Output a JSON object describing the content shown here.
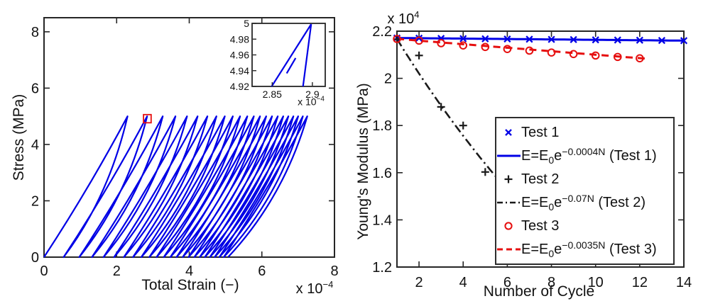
{
  "palette": {
    "blue": "#0000E6",
    "red": "#E60F0F",
    "black": "#1a1a1a",
    "axis": "#262626",
    "text": "#111111",
    "background": "#ffffff"
  },
  "left_plot": {
    "xlabel": "Total Strain (−)",
    "ylabel": "Stress (MPa)",
    "x_mult_base": "x 10",
    "x_mult_exp": "−4",
    "inset_mult_base": "x 10",
    "inset_mult_exp": "−4"
  },
  "right_plot": {
    "xlabel": "Number of Cycle",
    "ylabel": "Young's Modulus (MPa)",
    "y_mult_base": "x 10",
    "y_mult_exp": "4",
    "legend": {
      "rows": [
        {
          "label": "Test 1"
        },
        {
          "pre": "E=E",
          "sub": "0",
          "mid": "e",
          "sup": "−0.0004N",
          "post": " (Test 1)"
        },
        {
          "label": "Test 2"
        },
        {
          "pre": "E=E",
          "sub": "0",
          "mid": "e",
          "sup": "−0.07N",
          "post": " (Test 2)"
        },
        {
          "label": "Test 3"
        },
        {
          "pre": "E=E",
          "sub": "0",
          "mid": "e",
          "sup": "−0.0035N",
          "post": " (Test 3)"
        }
      ]
    }
  },
  "chart_data": [
    {
      "type": "line",
      "title": "",
      "xlabel": "Total Strain (−)",
      "ylabel": "Stress (MPa)",
      "x_unit_multiplier": "1e-4",
      "xlim": [
        0,
        8
      ],
      "ylim": [
        0,
        8.5
      ],
      "xticks": [
        0,
        2,
        4,
        6,
        8
      ],
      "xtick_labels": [
        "0",
        "2",
        "4",
        "6",
        "8"
      ],
      "yticks": [
        0,
        2,
        4,
        6,
        8
      ],
      "ytick_labels": [
        "0",
        "2",
        "4",
        "6",
        "8"
      ],
      "grid": false,
      "series_name": "cyclic loading-unloading stress-strain loops",
      "line_color": "#0000E6",
      "peak_stress_MPa": 5,
      "cycle_feet_strain_1e4": [
        0.0,
        0.54,
        0.97,
        1.32,
        1.64,
        1.93,
        2.2,
        2.45,
        2.68,
        2.9,
        3.1,
        3.3,
        3.48,
        3.65,
        3.82,
        3.98,
        4.14,
        4.29,
        4.43,
        4.57,
        4.7,
        4.83,
        4.95
      ],
      "cycle_peaks_strain_1e4": [
        2.3,
        2.84,
        3.27,
        3.62,
        3.94,
        4.23,
        4.5,
        4.75,
        4.98,
        5.2,
        5.4,
        5.6,
        5.78,
        5.95,
        6.12,
        6.28,
        6.44,
        6.59,
        6.73,
        6.87,
        7.0,
        7.13,
        7.25
      ],
      "final_residual_strain_1e4": 5.07,
      "zoom_marker_rect": {
        "x0": 2.74,
        "x1": 2.95,
        "y0": 4.77,
        "y1": 5.06,
        "color": "#E60F0F"
      },
      "inset": {
        "xlim": [
          2.825,
          2.916
        ],
        "ylim": [
          4.92,
          5.0
        ],
        "xticks": [
          2.85,
          2.9
        ],
        "xtick_labels": [
          "2.85",
          "2.9"
        ],
        "yticks": [
          5,
          4.98,
          4.96,
          4.94,
          4.92
        ],
        "ytick_labels": [
          "5",
          "4.98",
          "4.96",
          "4.94",
          "4.92"
        ],
        "x_unit_multiplier": "1e-4",
        "segments": [
          {
            "name": "loading-curve",
            "points": [
              [
                2.84,
                4.905
              ],
              [
                2.8985,
                4.999
              ]
            ]
          },
          {
            "name": "unloading-curve",
            "points": [
              [
                2.8985,
                4.999
              ],
              [
                2.8858,
                4.9
              ]
            ]
          },
          {
            "name": "next-cycle-loading",
            "points": [
              [
                2.868,
                4.9365
              ],
              [
                2.8792,
                4.956
              ]
            ]
          }
        ]
      }
    },
    {
      "type": "scatter",
      "title": "",
      "xlabel": "Number of Cycle",
      "ylabel": "Young's Modulus (MPa)",
      "y_unit_multiplier": "1e4",
      "xlim": [
        1,
        14
      ],
      "ylim": [
        12000,
        22000
      ],
      "xticks": [
        2,
        4,
        6,
        8,
        10,
        12,
        14
      ],
      "xtick_labels": [
        "2",
        "4",
        "6",
        "8",
        "10",
        "12",
        "14"
      ],
      "yticks": [
        12000,
        14000,
        16000,
        18000,
        20000,
        22000
      ],
      "ytick_labels": [
        "1.2",
        "1.4",
        "1.6",
        "1.8",
        "2",
        "2.2"
      ],
      "grid": false,
      "legend_position": "inside lower right",
      "series": [
        {
          "name": "Test 1",
          "kind": "markers",
          "marker": "x",
          "color": "#0000E6",
          "x": [
            1,
            2,
            3,
            4,
            5,
            6,
            7,
            8,
            9,
            10,
            11,
            12,
            13,
            14
          ],
          "y_MPa": [
            21711,
            21702,
            21694,
            21685,
            21676,
            21668,
            21659,
            21650,
            21642,
            21633,
            21624,
            21616,
            21607,
            21598
          ]
        },
        {
          "name": "E=E0e^(−0.0004N) (Test 1)",
          "kind": "fit",
          "style": "solid",
          "color": "#0000E6",
          "E0_MPa": 21720,
          "k": 0.0004,
          "N_range": [
            1,
            14
          ]
        },
        {
          "name": "Test 2",
          "kind": "markers",
          "marker": "+",
          "color": "#1a1a1a",
          "x": [
            1,
            2,
            3,
            4,
            5
          ],
          "y_MPa": [
            21660,
            20970,
            18790,
            18000,
            16030
          ]
        },
        {
          "name": "E=E0e^(−0.07N) (Test 2)",
          "kind": "fit",
          "style": "dashdot",
          "color": "#1a1a1a",
          "E0_MPa": 23240,
          "k": 0.07,
          "N_range": [
            1,
            5.6
          ]
        },
        {
          "name": "Test 3",
          "kind": "markers",
          "marker": "o",
          "color": "#E60F0F",
          "x": [
            1,
            2,
            3,
            4,
            5,
            6,
            7,
            8,
            9,
            10,
            11,
            12
          ],
          "y_MPa": [
            21670,
            21598,
            21490,
            21395,
            21330,
            21245,
            21175,
            21095,
            21030,
            20968,
            20908,
            20850
          ]
        },
        {
          "name": "E=E0e^(−0.0035N) (Test 3)",
          "kind": "fit",
          "style": "dashed",
          "color": "#E60F0F",
          "E0_MPa": 21750,
          "k": 0.0035,
          "N_range": [
            1,
            12.35
          ]
        }
      ]
    }
  ]
}
